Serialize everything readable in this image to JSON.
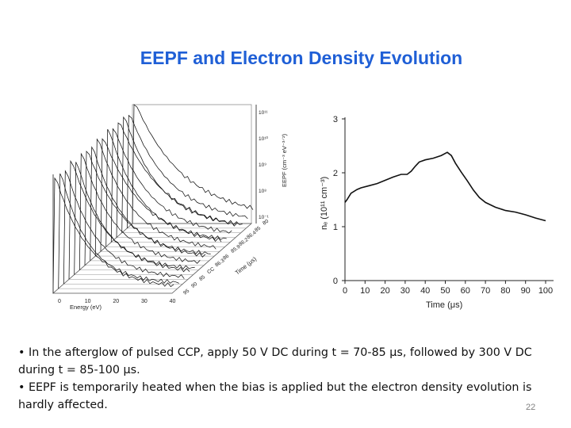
{
  "slide": {
    "title": "EEPF and Electron Density Evolution",
    "page_number": "22"
  },
  "bullets": [
    "• In the afterglow of pulsed CCP, apply 50 V DC during t = 70-85 μs, followed by 300 V DC during t = 85-100 μs.",
    "• EEPF is temporarily heated when the bias is applied but the electron density evolution is hardly affected."
  ],
  "chart_data": [
    {
      "type": "line",
      "view": "3d-waterfall",
      "xlabel": "Energy (eV)",
      "ylabel": "EEPF (cm⁻³ eV⁻³⸍²)",
      "depth_label": "Time (μs)",
      "x_ticks": [
        "0",
        "10",
        "20",
        "30",
        "40"
      ],
      "depth_ticks": [
        "80",
        "85",
        "86.4",
        "86.2",
        "85.9",
        "86",
        "86.3",
        "CC",
        "85",
        "90",
        "95"
      ],
      "y_ticks": [
        "10⁻¹",
        "10⁸",
        "10⁹",
        "10¹⁰",
        "10¹¹"
      ],
      "y_scale": "log",
      "n_traces": 16,
      "lines_color": "#111111"
    },
    {
      "type": "line",
      "xlabel": "Time (μs)",
      "ylabel": "nₑ (10¹¹ cm⁻³)",
      "x_ticks": [
        0,
        10,
        20,
        30,
        40,
        50,
        60,
        70,
        80,
        90,
        100
      ],
      "y_ticks": [
        0,
        1,
        2,
        3
      ],
      "xlim": [
        0,
        100
      ],
      "ylim": [
        0,
        3
      ],
      "grid": false,
      "series": [
        {
          "x": [
            0,
            1,
            3,
            6,
            8,
            12,
            16,
            20,
            24,
            28,
            31,
            33,
            35,
            37,
            40,
            44,
            48,
            51,
            53,
            55,
            58,
            61,
            64,
            67,
            70,
            75,
            80,
            85,
            90,
            95,
            100
          ],
          "y": [
            1.45,
            1.5,
            1.62,
            1.69,
            1.72,
            1.76,
            1.8,
            1.86,
            1.92,
            1.97,
            1.97,
            2.03,
            2.12,
            2.2,
            2.24,
            2.27,
            2.32,
            2.38,
            2.32,
            2.18,
            2.01,
            1.85,
            1.68,
            1.54,
            1.45,
            1.36,
            1.3,
            1.27,
            1.22,
            1.16,
            1.11
          ],
          "color": "#111111"
        }
      ]
    }
  ]
}
